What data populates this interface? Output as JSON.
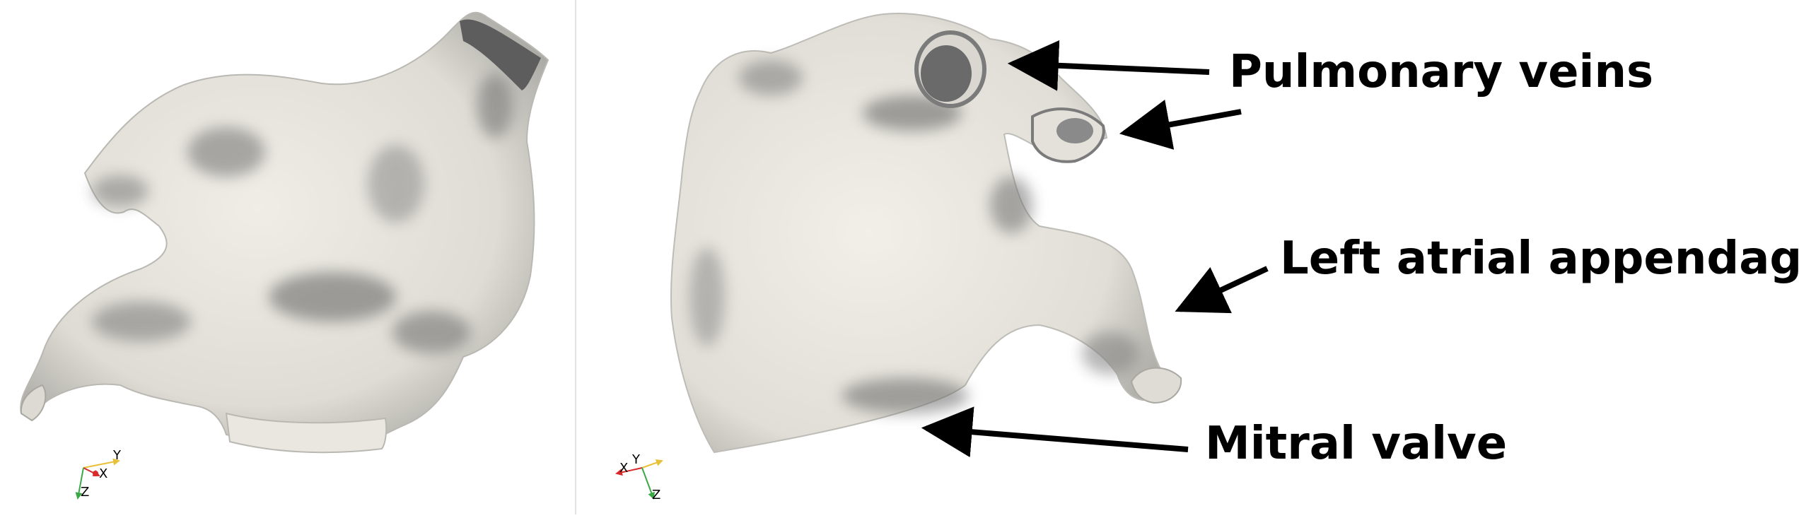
{
  "annotations": {
    "pulmonary_veins": "Pulmonary veins",
    "left_atrial_appendage": "Left atrial appendage",
    "mitral_valve": "Mitral valve"
  },
  "left_view": {
    "axes": {
      "x": "X",
      "y": "Y",
      "z": "Z"
    }
  },
  "right_view": {
    "axes": {
      "x": "X",
      "y": "Y",
      "z": "Z"
    }
  },
  "colors": {
    "surface": "#e6e4dc",
    "shadow": "#6f6f6f",
    "divider": "#e2e2e2",
    "x_axis": "#d8292b",
    "y_axis": "#e8c13a",
    "z_axis": "#3aa845"
  }
}
